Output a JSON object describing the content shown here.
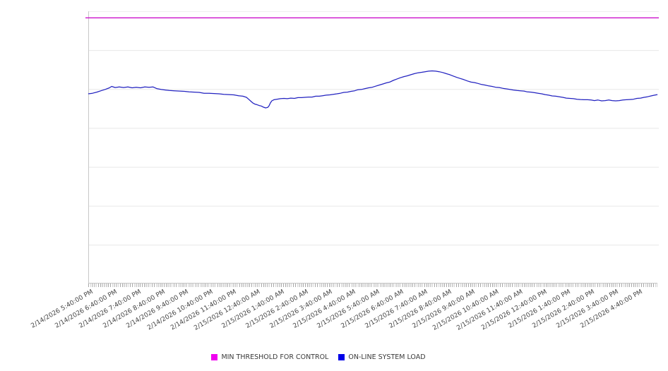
{
  "legend": [
    {
      "label": "MIN THRESHOLD FOR CONTROL",
      "color": "#f000f0"
    },
    {
      "label": "ON-LINE SYSTEM LOAD",
      "color": "#0000e8"
    }
  ],
  "chart_data": {
    "type": "line",
    "title": "",
    "xlabel": "",
    "ylabel": "",
    "x_axis": {
      "tick_labels": [
        "2/14/2026 5:40:00 PM",
        "2/14/2026 6:40:00 PM",
        "2/14/2026 7:40:00 PM",
        "2/14/2026 8:40:00 PM",
        "2/14/2026 9:40:00 PM",
        "2/14/2026 10:40:00 PM",
        "2/14/2026 11:40:00 PM",
        "2/15/2026 12:40:00 AM",
        "2/15/2026 1:40:00 AM",
        "2/15/2026 2:40:00 AM",
        "2/15/2026 3:40:00 AM",
        "2/15/2026 4:40:00 AM",
        "2/15/2026 5:40:00 AM",
        "2/15/2026 6:40:00 AM",
        "2/15/2026 7:40:00 AM",
        "2/15/2026 8:40:00 AM",
        "2/15/2026 9:40:00 AM",
        "2/15/2026 10:40:00 AM",
        "2/15/2026 11:40:00 AM",
        "2/15/2026 12:40:00 PM",
        "2/15/2026 1:40:00 PM",
        "2/15/2026 2:40:00 PM",
        "2/15/2026 3:40:00 PM",
        "2/15/2026 4:40:00 PM"
      ],
      "major_tick_interval": "1 hour",
      "minor_tick_interval": "5 minutes",
      "label_rotation_deg": -30
    },
    "y_axis": {
      "tick_labels_visible": false,
      "unit": "percent of plot height (no numeric labels shown)",
      "range": [
        0,
        100
      ],
      "gridline_divisions": 7,
      "grid_on": true
    },
    "legend_position": "bottom-center",
    "series": [
      {
        "name": "MIN THRESHOLD FOR CONTROL",
        "type": "constant-line",
        "color": "#cc11cc",
        "value": 97.6
      },
      {
        "name": "ON-LINE SYSTEM LOAD",
        "type": "line",
        "color": "#2222c0",
        "points_format": "[hours since first tick, load % of plot height]",
        "points": [
          [
            -0.12,
            69.7
          ],
          [
            0.06,
            69.9
          ],
          [
            0.24,
            70.3
          ],
          [
            0.41,
            70.8
          ],
          [
            0.59,
            71.3
          ],
          [
            0.77,
            71.9
          ],
          [
            0.86,
            72.4
          ],
          [
            1.01,
            72.0
          ],
          [
            1.18,
            72.2
          ],
          [
            1.36,
            72.0
          ],
          [
            1.54,
            72.2
          ],
          [
            1.72,
            71.9
          ],
          [
            1.89,
            72.1
          ],
          [
            2.07,
            71.9
          ],
          [
            2.25,
            72.2
          ],
          [
            2.43,
            72.1
          ],
          [
            2.6,
            72.2
          ],
          [
            2.75,
            71.6
          ],
          [
            2.93,
            71.3
          ],
          [
            3.11,
            71.1
          ],
          [
            3.28,
            70.9
          ],
          [
            3.49,
            70.8
          ],
          [
            3.7,
            70.7
          ],
          [
            3.91,
            70.6
          ],
          [
            4.11,
            70.4
          ],
          [
            4.32,
            70.3
          ],
          [
            4.53,
            70.2
          ],
          [
            4.73,
            69.9
          ],
          [
            4.94,
            69.9
          ],
          [
            5.15,
            69.8
          ],
          [
            5.36,
            69.7
          ],
          [
            5.56,
            69.5
          ],
          [
            5.77,
            69.4
          ],
          [
            5.98,
            69.3
          ],
          [
            6.18,
            69.0
          ],
          [
            6.36,
            68.8
          ],
          [
            6.51,
            68.4
          ],
          [
            6.6,
            67.7
          ],
          [
            6.69,
            67.0
          ],
          [
            6.78,
            66.3
          ],
          [
            6.86,
            65.9
          ],
          [
            6.95,
            65.7
          ],
          [
            7.04,
            65.4
          ],
          [
            7.13,
            65.2
          ],
          [
            7.22,
            64.8
          ],
          [
            7.31,
            64.5
          ],
          [
            7.4,
            64.7
          ],
          [
            7.46,
            65.3
          ],
          [
            7.51,
            66.3
          ],
          [
            7.57,
            67.1
          ],
          [
            7.66,
            67.5
          ],
          [
            7.78,
            67.7
          ],
          [
            7.93,
            67.9
          ],
          [
            8.08,
            68.0
          ],
          [
            8.22,
            67.9
          ],
          [
            8.37,
            68.1
          ],
          [
            8.52,
            68.0
          ],
          [
            8.67,
            68.3
          ],
          [
            8.82,
            68.3
          ],
          [
            8.96,
            68.4
          ],
          [
            9.11,
            68.5
          ],
          [
            9.26,
            68.5
          ],
          [
            9.41,
            68.8
          ],
          [
            9.56,
            68.8
          ],
          [
            9.7,
            69.0
          ],
          [
            9.85,
            69.2
          ],
          [
            10.0,
            69.3
          ],
          [
            10.15,
            69.5
          ],
          [
            10.3,
            69.7
          ],
          [
            10.44,
            69.9
          ],
          [
            10.59,
            70.2
          ],
          [
            10.74,
            70.3
          ],
          [
            10.89,
            70.6
          ],
          [
            11.04,
            70.8
          ],
          [
            11.18,
            71.2
          ],
          [
            11.33,
            71.3
          ],
          [
            11.48,
            71.6
          ],
          [
            11.63,
            71.9
          ],
          [
            11.78,
            72.1
          ],
          [
            11.92,
            72.5
          ],
          [
            12.07,
            72.9
          ],
          [
            12.22,
            73.3
          ],
          [
            12.37,
            73.7
          ],
          [
            12.51,
            74.0
          ],
          [
            12.66,
            74.6
          ],
          [
            12.81,
            75.1
          ],
          [
            12.96,
            75.6
          ],
          [
            13.11,
            76.0
          ],
          [
            13.25,
            76.3
          ],
          [
            13.4,
            76.7
          ],
          [
            13.55,
            77.1
          ],
          [
            13.7,
            77.4
          ],
          [
            13.85,
            77.6
          ],
          [
            13.99,
            77.8
          ],
          [
            14.14,
            78.0
          ],
          [
            14.29,
            78.1
          ],
          [
            14.44,
            78.0
          ],
          [
            14.59,
            77.8
          ],
          [
            14.73,
            77.5
          ],
          [
            14.88,
            77.1
          ],
          [
            15.03,
            76.7
          ],
          [
            15.18,
            76.2
          ],
          [
            15.33,
            75.7
          ],
          [
            15.47,
            75.3
          ],
          [
            15.62,
            74.9
          ],
          [
            15.77,
            74.4
          ],
          [
            15.92,
            74.0
          ],
          [
            16.07,
            73.8
          ],
          [
            16.21,
            73.5
          ],
          [
            16.36,
            73.1
          ],
          [
            16.51,
            72.9
          ],
          [
            16.66,
            72.6
          ],
          [
            16.8,
            72.4
          ],
          [
            16.95,
            72.1
          ],
          [
            17.1,
            72.0
          ],
          [
            17.25,
            71.7
          ],
          [
            17.4,
            71.5
          ],
          [
            17.54,
            71.3
          ],
          [
            17.69,
            71.1
          ],
          [
            17.84,
            70.9
          ],
          [
            17.99,
            70.8
          ],
          [
            18.14,
            70.7
          ],
          [
            18.28,
            70.4
          ],
          [
            18.43,
            70.3
          ],
          [
            18.58,
            70.1
          ],
          [
            18.73,
            69.9
          ],
          [
            18.88,
            69.7
          ],
          [
            19.02,
            69.4
          ],
          [
            19.17,
            69.2
          ],
          [
            19.32,
            68.9
          ],
          [
            19.47,
            68.8
          ],
          [
            19.62,
            68.6
          ],
          [
            19.76,
            68.4
          ],
          [
            19.91,
            68.1
          ],
          [
            20.06,
            68.0
          ],
          [
            20.21,
            67.9
          ],
          [
            20.36,
            67.7
          ],
          [
            20.5,
            67.6
          ],
          [
            20.65,
            67.5
          ],
          [
            20.8,
            67.5
          ],
          [
            20.95,
            67.4
          ],
          [
            21.09,
            67.2
          ],
          [
            21.24,
            67.4
          ],
          [
            21.39,
            67.1
          ],
          [
            21.54,
            67.2
          ],
          [
            21.69,
            67.4
          ],
          [
            21.83,
            67.2
          ],
          [
            21.98,
            67.1
          ],
          [
            22.13,
            67.2
          ],
          [
            22.28,
            67.4
          ],
          [
            22.43,
            67.5
          ],
          [
            22.57,
            67.6
          ],
          [
            22.72,
            67.7
          ],
          [
            22.87,
            68.0
          ],
          [
            23.02,
            68.1
          ],
          [
            23.17,
            68.4
          ],
          [
            23.31,
            68.6
          ],
          [
            23.46,
            68.9
          ],
          [
            23.61,
            69.2
          ],
          [
            23.73,
            69.4
          ]
        ]
      }
    ]
  }
}
